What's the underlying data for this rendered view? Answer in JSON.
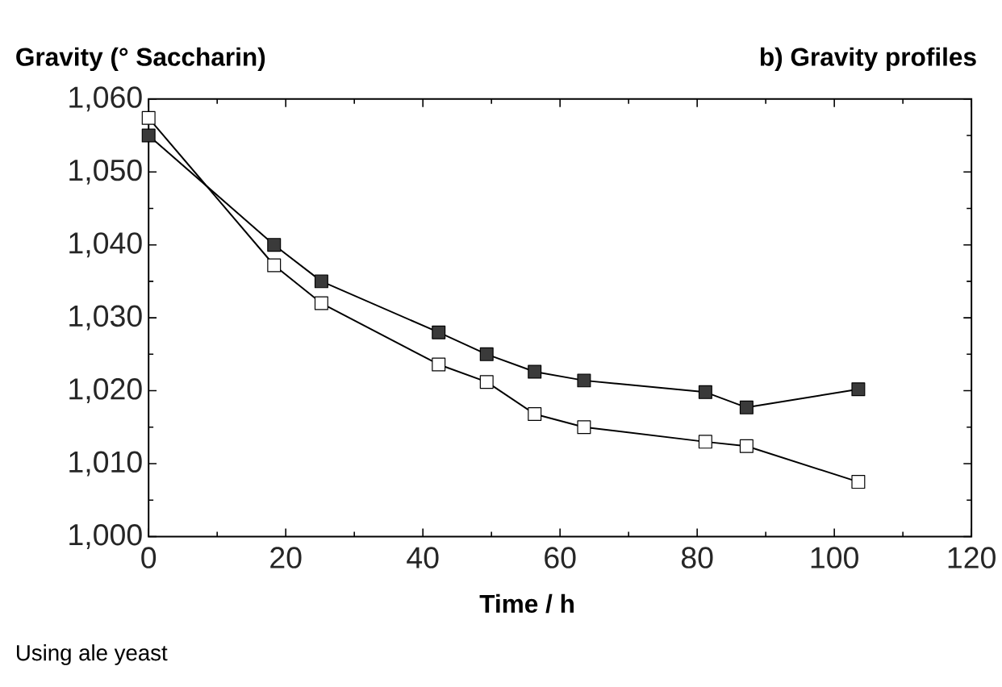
{
  "chart_data": {
    "type": "line",
    "title": "b) Gravity profiles",
    "ylabel": "Gravity (° Saccharin)",
    "xlabel": "Time / h",
    "annotations": [
      "Using ale yeast"
    ],
    "xlim": [
      0,
      120
    ],
    "xticks": [
      0,
      20,
      40,
      60,
      80,
      100,
      120
    ],
    "ylim": [
      1000,
      1060
    ],
    "yticks": [
      {
        "value": 1000,
        "label": "1,000"
      },
      {
        "value": 1010,
        "label": "1,010"
      },
      {
        "value": 1020,
        "label": "1,020"
      },
      {
        "value": 1030,
        "label": "1,030"
      },
      {
        "value": 1040,
        "label": "1,040"
      },
      {
        "value": 1050,
        "label": "1,050"
      },
      {
        "value": 1060,
        "label": "1,060"
      }
    ],
    "grid": false,
    "marker": "square",
    "line_style": "solid",
    "series": [
      {
        "color": "#3a3a3a",
        "x": [
          0,
          18.3,
          25.2,
          42.3,
          49.3,
          56.3,
          63.5,
          81.2,
          87.2,
          103.5
        ],
        "values": [
          1055,
          1040,
          1035,
          1028,
          1025,
          1022.6,
          1021.4,
          1019.8,
          1017.7,
          1020.2
        ]
      },
      {
        "color": "#ffffff",
        "x": [
          0,
          18.3,
          25.2,
          42.3,
          49.3,
          56.3,
          63.5,
          81.2,
          87.2,
          103.5
        ],
        "values": [
          1057.4,
          1037.2,
          1032,
          1023.6,
          1021.2,
          1016.8,
          1015,
          1013,
          1012.4,
          1007.5
        ]
      }
    ]
  }
}
